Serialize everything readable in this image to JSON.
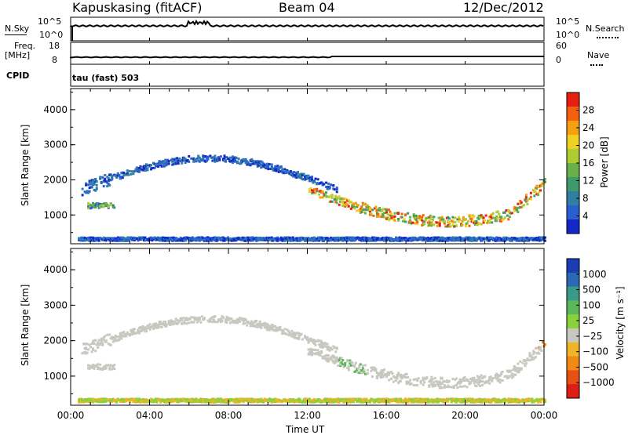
{
  "header": {
    "station": "Kapuskasing (fitACF)",
    "beam": "Beam 04",
    "date": "12/Dec/2012"
  },
  "top_panels": {
    "nsky_label": "N.Sky",
    "nsky_ticks": [
      "10^5",
      "10^0"
    ],
    "nsearch_label": "N.Search",
    "nsearch_ticks": [
      "10^5",
      "10^0"
    ],
    "freq_label_1": "Freq.",
    "freq_label_2": "[MHz]",
    "freq_ticks": [
      "18",
      "8"
    ],
    "nave_label": "Nave",
    "nave_ticks": [
      "60",
      "0"
    ],
    "cpid_label": "CPID",
    "cpid_value": "tau (fast) 503"
  },
  "colors": {
    "power_scale": [
      "#1428c8",
      "#2a5fd0",
      "#2f7fa5",
      "#3d9a6a",
      "#6ab04a",
      "#b0cc32",
      "#f0d020",
      "#f5a010",
      "#f56010",
      "#e62010"
    ],
    "velocity_scale": [
      "#1c3cb4",
      "#2a6ab4",
      "#3a9a8a",
      "#5ab85a",
      "#8ad23c",
      "#c8c8c0",
      "#f0b428",
      "#f08a14",
      "#e65014",
      "#dc1e14"
    ]
  },
  "chart_data": [
    {
      "type": "heatmap",
      "name": "Power",
      "xlabel": "",
      "ylabel": "Slant Range [km]",
      "x_ticks": [
        "00:00",
        "04:00",
        "08:00",
        "12:00",
        "16:00",
        "20:00",
        "00:00"
      ],
      "ylim": [
        180,
        4600
      ],
      "y_ticks": [
        1000,
        2000,
        3000,
        4000
      ],
      "colorbar_label": "Power [dB]",
      "colorbar_ticks": [
        "28",
        "24",
        "20",
        "16",
        "12",
        "8",
        "4"
      ],
      "colorbar_range": [
        0,
        32
      ]
    },
    {
      "type": "heatmap",
      "name": "Velocity",
      "xlabel": "Time UT",
      "ylabel": "Slant Range [km]",
      "x_ticks": [
        "00:00",
        "04:00",
        "08:00",
        "12:00",
        "16:00",
        "20:00",
        "00:00"
      ],
      "ylim": [
        180,
        4600
      ],
      "y_ticks": [
        1000,
        2000,
        3000,
        4000
      ],
      "colorbar_label": "Velocity [m s⁻¹]",
      "colorbar_ticks": [
        "1000",
        "500",
        "100",
        "25",
        "−25",
        "−100",
        "−500",
        "−1000"
      ]
    }
  ]
}
